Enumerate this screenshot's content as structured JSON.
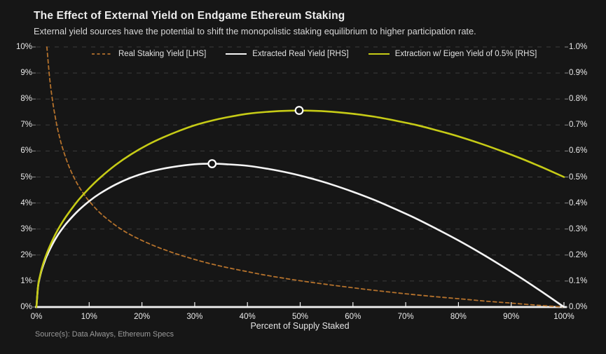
{
  "header": {
    "title": "The Effect of External Yield on Endgame Ethereum Staking",
    "subtitle": "External yield sources have the potential to shift the monopolistic staking equilibrium to higher participation rate."
  },
  "footer": {
    "source": "Source(s): Data Always, Ethereum Specs"
  },
  "colors": {
    "background": "#161616",
    "real_staking_yield": "#b5722c",
    "extracted_real_yield": "#f5f5f5",
    "eigen_extraction": "#c6cb16",
    "grid": "#3c3c3c",
    "axis_line": "#f2f2f2",
    "tick_mark": "#8a8a8a",
    "marker_fill": "#141414",
    "marker_ring": "#ffffff"
  },
  "chart_data": {
    "type": "line",
    "title": "The Effect of External Yield on Endgame Ethereum Staking",
    "xlabel": "Percent of Supply Staked",
    "grid": "horizontal-dashed",
    "legend_position": "top-center",
    "x_axis": {
      "tick_labels": [
        "0%",
        "10%",
        "20%",
        "30%",
        "40%",
        "50%",
        "60%",
        "70%",
        "80%",
        "90%",
        "100%"
      ],
      "tick_values": [
        0,
        10,
        20,
        30,
        40,
        50,
        60,
        70,
        80,
        90,
        100
      ],
      "range": [
        0,
        100
      ]
    },
    "left_axis": {
      "tick_labels": [
        "0%",
        "1%",
        "2%",
        "3%",
        "4%",
        "5%",
        "6%",
        "7%",
        "8%",
        "9%",
        "10%"
      ],
      "tick_values": [
        0,
        1,
        2,
        3,
        4,
        5,
        6,
        7,
        8,
        9,
        10
      ],
      "range": [
        0,
        10
      ]
    },
    "right_axis": {
      "tick_labels": [
        "0.0%",
        "0.1%",
        "0.2%",
        "0.3%",
        "0.4%",
        "0.5%",
        "0.6%",
        "0.7%",
        "0.8%",
        "0.9%",
        "1.0%"
      ],
      "tick_values": [
        0,
        0.1,
        0.2,
        0.3,
        0.4,
        0.5,
        0.6,
        0.7,
        0.8,
        0.9,
        1.0
      ],
      "range": [
        0,
        1
      ]
    },
    "series": [
      {
        "name": "Real Staking Yield [LHS]",
        "axis": "left",
        "style": "dashed",
        "color_key": "real_staking_yield",
        "x": [
          1.98,
          2.5,
          3,
          3.5,
          4,
          4.5,
          5,
          6,
          7,
          8,
          9,
          10,
          12,
          14,
          16,
          18,
          20,
          22.5,
          25,
          27.5,
          30,
          32.5,
          35,
          37.5,
          40,
          42.5,
          45,
          47.5,
          50,
          55,
          60,
          65,
          70,
          75,
          80,
          85,
          90,
          95,
          100
        ],
        "y": [
          10,
          8.82,
          8.01,
          7.38,
          6.86,
          6.44,
          6.08,
          5.49,
          5.03,
          4.65,
          4.34,
          4.07,
          3.63,
          3.29,
          3.0,
          2.76,
          2.56,
          2.34,
          2.15,
          1.98,
          1.83,
          1.69,
          1.57,
          1.46,
          1.36,
          1.26,
          1.17,
          1.09,
          1.01,
          0.87,
          0.74,
          0.62,
          0.51,
          0.41,
          0.32,
          0.23,
          0.15,
          0.07,
          0
        ]
      },
      {
        "name": "Extracted Real Yield [RHS]",
        "axis": "right",
        "style": "solid",
        "color_key": "extracted_real_yield",
        "x": [
          0,
          0.3,
          0.6,
          1,
          1.5,
          2,
          3,
          4,
          5,
          6,
          8,
          10,
          12,
          15,
          18,
          21,
          24,
          27,
          30,
          33.3,
          36,
          40,
          44,
          48,
          52,
          56,
          60,
          64,
          68,
          72,
          76,
          80,
          84,
          88,
          92,
          96,
          100
        ],
        "y": [
          0,
          0.078,
          0.11,
          0.142,
          0.172,
          0.198,
          0.24,
          0.275,
          0.304,
          0.329,
          0.372,
          0.407,
          0.436,
          0.471,
          0.498,
          0.518,
          0.532,
          0.542,
          0.549,
          0.551,
          0.549,
          0.543,
          0.531,
          0.515,
          0.495,
          0.471,
          0.443,
          0.412,
          0.377,
          0.34,
          0.299,
          0.256,
          0.21,
          0.161,
          0.11,
          0.056,
          0
        ],
        "marker": {
          "x": 33.3,
          "y": 0.551
        }
      },
      {
        "name": "Extraction w/ Eigen Yield of 0.5% [RHS]",
        "axis": "right",
        "style": "solid",
        "color_key": "eigen_extraction",
        "x": [
          0,
          0.3,
          0.6,
          1,
          1.5,
          2,
          3,
          4,
          5,
          6,
          8,
          10,
          12,
          15,
          18,
          21,
          24,
          27,
          30,
          33.3,
          36,
          40,
          44,
          48,
          52,
          56,
          60,
          64,
          68,
          72,
          76,
          80,
          84,
          88,
          92,
          96,
          100
        ],
        "y": [
          0,
          0.08,
          0.113,
          0.147,
          0.18,
          0.208,
          0.255,
          0.295,
          0.329,
          0.359,
          0.412,
          0.457,
          0.496,
          0.546,
          0.588,
          0.623,
          0.652,
          0.677,
          0.699,
          0.717,
          0.729,
          0.743,
          0.751,
          0.755,
          0.755,
          0.751,
          0.743,
          0.732,
          0.717,
          0.7,
          0.679,
          0.656,
          0.63,
          0.601,
          0.57,
          0.536,
          0.5
        ],
        "marker": {
          "x": 49.8,
          "y": 0.756
        }
      }
    ]
  }
}
